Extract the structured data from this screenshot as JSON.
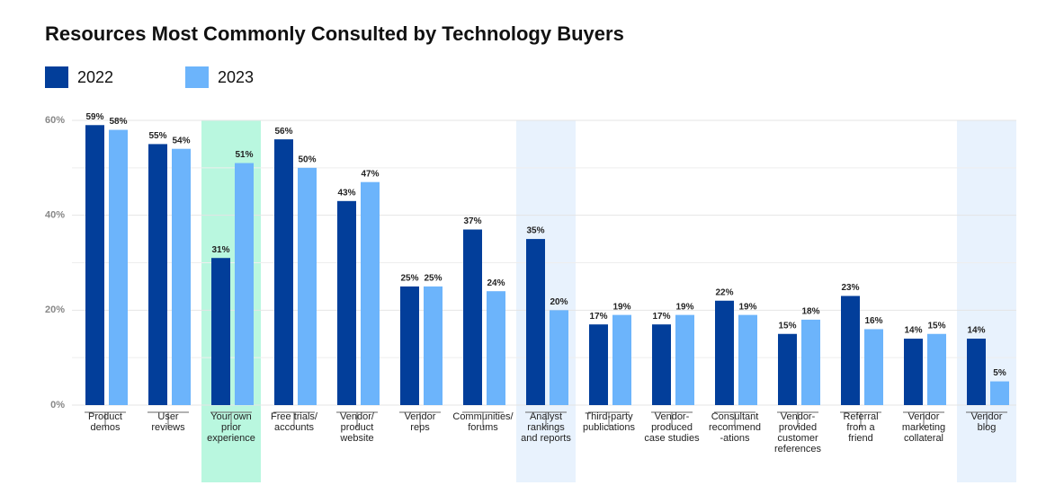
{
  "chart_data": {
    "type": "bar",
    "title": "Resources Most Commonly Consulted by Technology Buyers",
    "categories": [
      "Product\ndemos",
      "User\nreviews",
      "Your own\nprior\nexperience",
      "Free trials/\naccounts",
      "Vendor/\nproduct\nwebsite",
      "Vendor\nreps",
      "Communities/\nforums",
      "Analyst\nrankings\nand reports",
      "Third-party\npublications",
      "Vendor-\nproduced\ncase studies",
      "Consultant\nrecommend\n-ations",
      "Vendor-\nprovided\ncustomer\nreferences",
      "Referral\nfrom a\nfriend",
      "Vendor\nmarketing\ncollateral",
      "Vendor\nblog"
    ],
    "series": [
      {
        "name": "2022",
        "color": "#023e9a",
        "values": [
          59,
          55,
          31,
          56,
          43,
          25,
          37,
          35,
          17,
          17,
          22,
          15,
          23,
          14,
          14
        ],
        "value_labels": [
          "59%",
          "55%",
          "31%",
          "56%",
          "43%",
          "25%",
          "37%",
          "35%",
          "17%",
          "17%",
          "22%",
          "15%",
          "23%",
          "14%",
          "14%"
        ]
      },
      {
        "name": "2023",
        "color": "#6cb4fb",
        "values": [
          58,
          54,
          51,
          50,
          47,
          25,
          24,
          20,
          19,
          19,
          19,
          18,
          16,
          15,
          5
        ],
        "value_labels": [
          "58%",
          "54%",
          "51%",
          "50%",
          "47%",
          "25%",
          "24%",
          "20%",
          "19%",
          "19%",
          "19%",
          "18%",
          "16%",
          "15%",
          "5%"
        ]
      }
    ],
    "ylim": [
      0,
      60
    ],
    "yticks": [
      {
        "value": 0,
        "label": "0%"
      },
      {
        "value": 20,
        "label": "20%"
      },
      {
        "value": 40,
        "label": "40%"
      },
      {
        "value": 60,
        "label": "60%"
      }
    ],
    "minor_yticks": [
      10,
      30,
      50
    ],
    "grid": true,
    "legend": "top-left",
    "highlights": [
      {
        "index": 2,
        "color": "#b9f7df"
      },
      {
        "index": 7,
        "color": "#e8f2fd"
      },
      {
        "index": 14,
        "color": "#e8f2fd"
      }
    ]
  }
}
